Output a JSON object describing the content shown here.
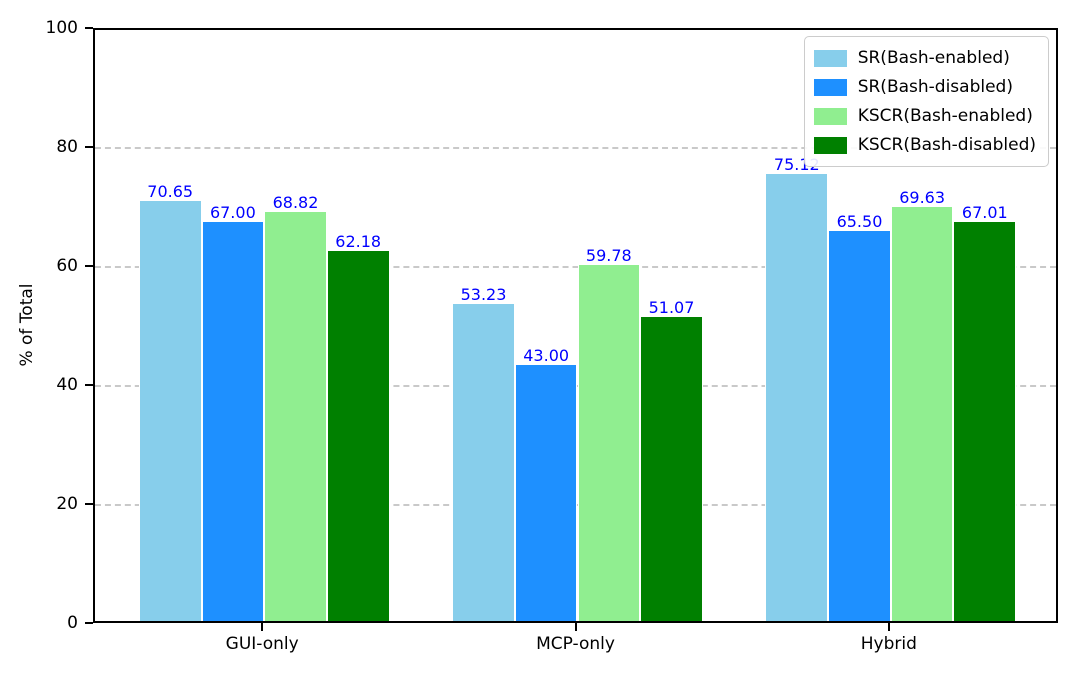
{
  "chart_data": {
    "type": "bar",
    "title": "",
    "xlabel": "",
    "ylabel": "% of Total",
    "categories": [
      "GUI-only",
      "MCP-only",
      "Hybrid"
    ],
    "series": [
      {
        "name": "SR(Bash-enabled)",
        "color": "#87CEEB",
        "values": [
          70.65,
          53.23,
          75.12
        ]
      },
      {
        "name": "SR(Bash-disabled)",
        "color": "#1E90FF",
        "values": [
          67.0,
          43.0,
          65.5
        ]
      },
      {
        "name": "KSCR(Bash-enabled)",
        "color": "#90EE90",
        "values": [
          68.82,
          59.78,
          69.63
        ]
      },
      {
        "name": "KSCR(Bash-disabled)",
        "color": "#008000",
        "values": [
          62.18,
          51.07,
          67.01
        ]
      }
    ],
    "ylim": [
      0,
      100
    ],
    "yticks": [
      0,
      20,
      40,
      60,
      80,
      100
    ],
    "grid": {
      "axis": "y",
      "style": "dashed",
      "color": "#c9c9c9"
    },
    "legend_position": "upper-right",
    "bar_label_color": "#0000FF",
    "bar_label_decimals": 2
  }
}
